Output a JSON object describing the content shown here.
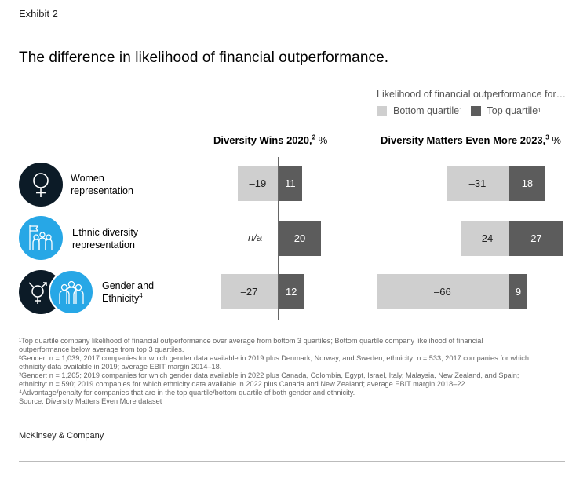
{
  "exhibit": "Exhibit 2",
  "title": "The difference in likelihood of financial outperformance.",
  "legend": {
    "heading": "Likelihood of financial outperformance for…",
    "bottom_label": "Bottom quartile",
    "bottom_sup": "1",
    "top_label": "Top quartile",
    "top_sup": "1"
  },
  "colors": {
    "bottom": "#cfcfcf",
    "top": "#5c5c5c",
    "icon": "#27a7e6",
    "icon_dark": "#0c1b27"
  },
  "icons": [
    "female-symbol-icon",
    "group-flag-icon",
    "gender-ethnicity-icon"
  ],
  "chart_data": [
    {
      "type": "bar",
      "orientation": "horizontal-diverging",
      "title": "Diversity Wins 2020,",
      "title_sup": "2",
      "unit": "%",
      "categories": [
        "Women representation",
        "Ethnic diversity representation",
        "Gender and Ethnicity"
      ],
      "series": [
        {
          "name": "Bottom quartile",
          "values": [
            -19,
            null,
            -27
          ],
          "labels": [
            "–19",
            "n/a",
            "–27"
          ]
        },
        {
          "name": "Top quartile",
          "values": [
            11,
            20,
            12
          ],
          "labels": [
            "11",
            "20",
            "12"
          ]
        }
      ]
    },
    {
      "type": "bar",
      "orientation": "horizontal-diverging",
      "title": "Diversity Matters Even More 2023,",
      "title_sup": "3",
      "unit": "%",
      "categories": [
        "Women representation",
        "Ethnic diversity representation",
        "Gender and Ethnicity"
      ],
      "series": [
        {
          "name": "Bottom quartile",
          "values": [
            -31,
            -24,
            -66
          ],
          "labels": [
            "–31",
            "–24",
            "–66"
          ]
        },
        {
          "name": "Top quartile",
          "values": [
            18,
            27,
            9
          ],
          "labels": [
            "18",
            "27",
            "9"
          ]
        }
      ]
    }
  ],
  "categories": [
    {
      "line1": "Women",
      "line2": "representation",
      "sup": ""
    },
    {
      "line1": "Ethnic diversity",
      "line2": "representation",
      "sup": ""
    },
    {
      "line1": "Gender and",
      "line2": "Ethnicity",
      "sup": "4"
    }
  ],
  "footnotes": [
    "¹Top quartile company likelihood of financial outperformance over average from bottom 3 quartiles; Bottom quartile company likelihood of financial",
    "  outperformance below average from top 3 quartiles.",
    "²Gender: n = 1,039; 2017 companies for which gender data available in 2019 plus Denmark, Norway, and Sweden; ethnicity: n = 533; 2017 companies for which",
    "  ethnicity data available in 2019; average EBIT margin 2014–18.",
    "³Gender: n = 1,265; 2019 companies for which gender data available in 2022 plus Canada, Colombia, Egypt, Israel, Italy, Malaysia, New Zealand, and Spain;",
    "  ethnicity: n = 590; 2019 companies for which ethnicity data available in 2022 plus Canada and New Zealand; average EBIT margin 2018–22.",
    "⁴Advantage/penalty for companies that are in the top quartile/bottom quartile of both gender and ethnicity.",
    "  Source: Diversity Matters Even More dataset"
  ],
  "brand": "McKinsey & Company"
}
